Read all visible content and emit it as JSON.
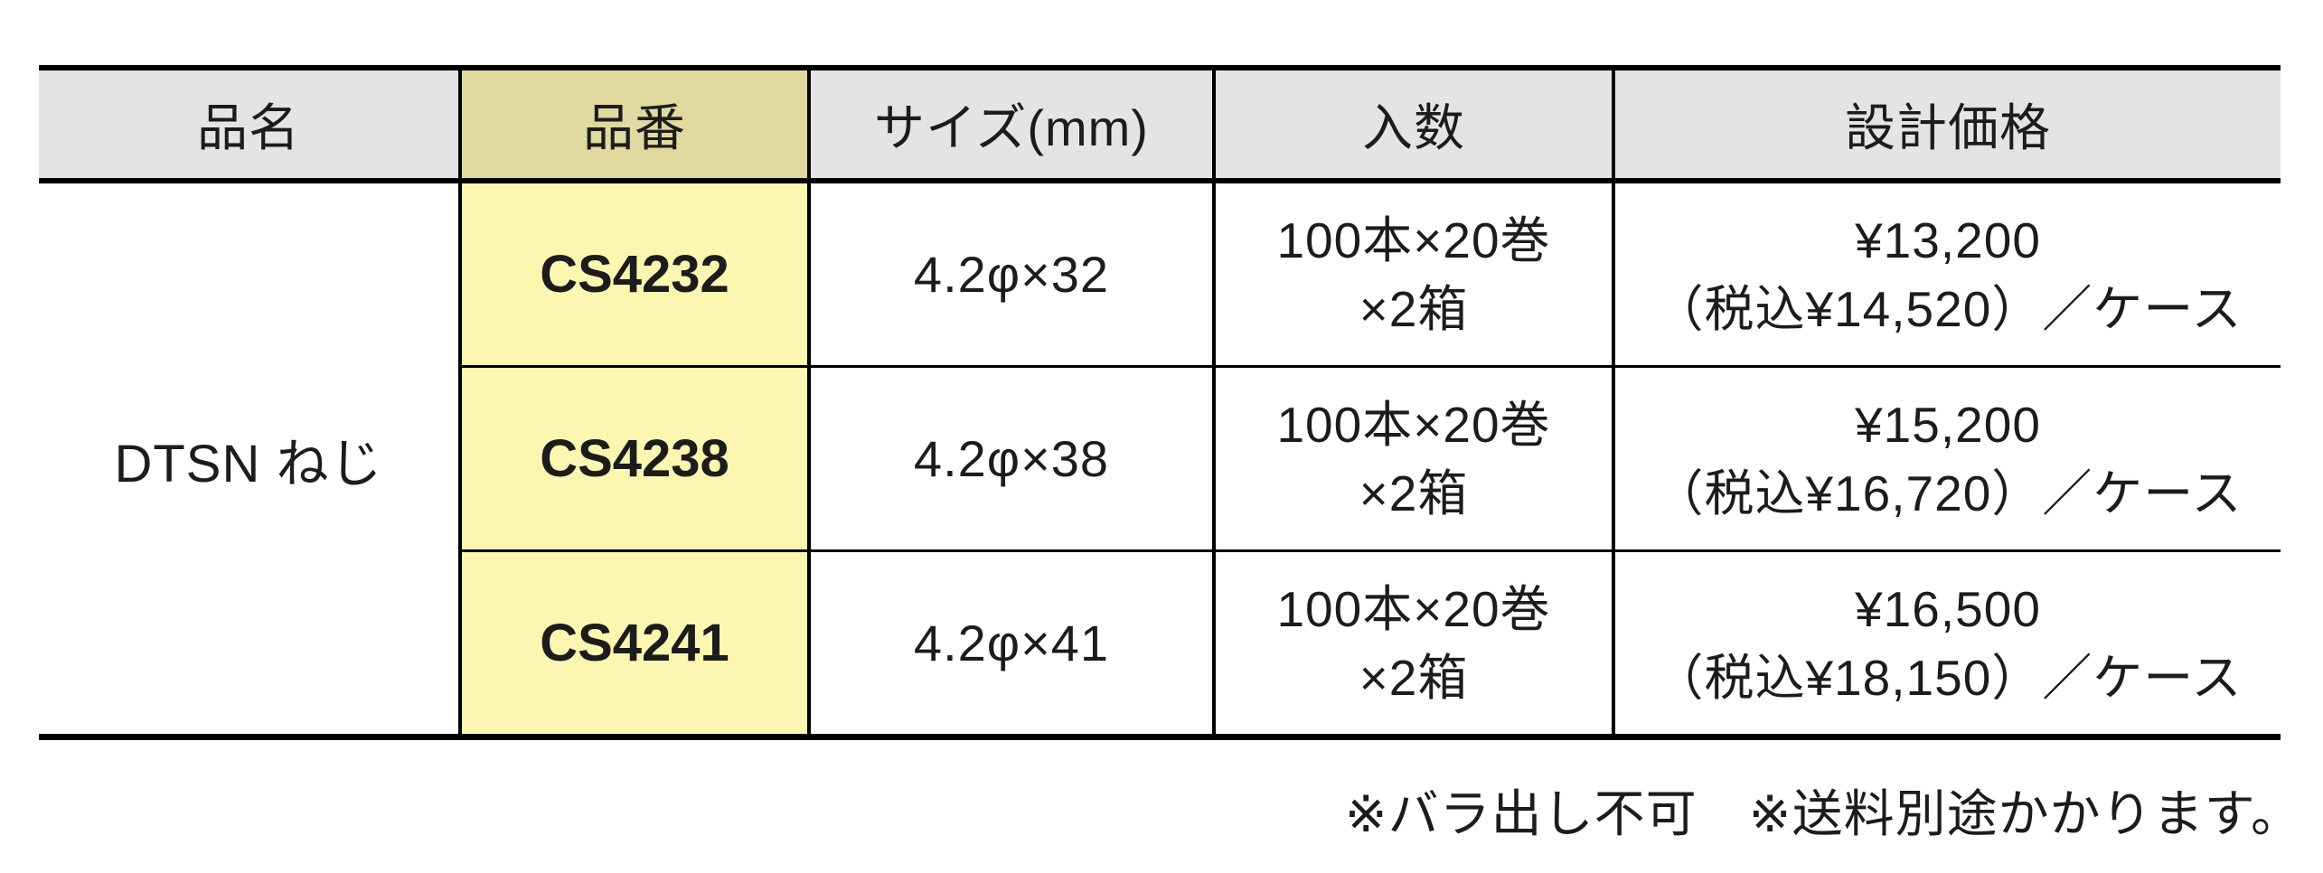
{
  "colors": {
    "header-gray": "#e4e4e4",
    "header-khaki": "#e0d9a0",
    "body-yellow": "#fbf6b0",
    "border-black": "#000000",
    "text": "#1c1c1c"
  },
  "table": {
    "headers": {
      "product_name": "品名",
      "part_number": "品番",
      "size": "サイズ(mm)",
      "quantity": "入数",
      "price": "設計価格"
    },
    "product_name": "DTSN ねじ",
    "rows": [
      {
        "part_number": "CS4232",
        "size": "4.2φ×32",
        "quantity_line1": "100本×20巻",
        "quantity_line2": "×2箱",
        "price_line1": "¥13,200",
        "price_line2": "（税込¥14,520）／ケース"
      },
      {
        "part_number": "CS4238",
        "size": "4.2φ×38",
        "quantity_line1": "100本×20巻",
        "quantity_line2": "×2箱",
        "price_line1": "¥15,200",
        "price_line2": "（税込¥16,720）／ケース"
      },
      {
        "part_number": "CS4241",
        "size": "4.2φ×41",
        "quantity_line1": "100本×20巻",
        "quantity_line2": "×2箱",
        "price_line1": "¥16,500",
        "price_line2": "（税込¥18,150）／ケース"
      }
    ],
    "footnote": "※バラ出し不可　※送料別途かかります。"
  }
}
